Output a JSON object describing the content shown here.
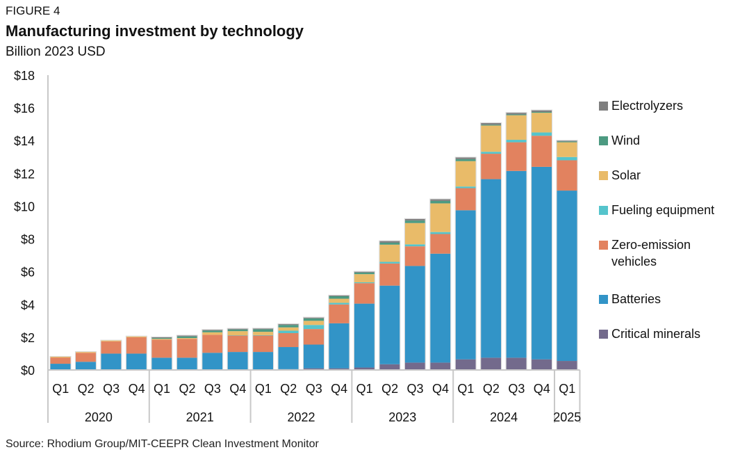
{
  "figure_label": "FIGURE 4",
  "source": "Source: Rhodium Group/MIT-CEEPR Clean Investment Monitor",
  "chart_data": {
    "type": "bar",
    "stacked": true,
    "title": "Manufacturing investment by technology",
    "subtitle": "Billion 2023 USD",
    "xlabel": "",
    "ylabel": "Billion 2023 USD",
    "ylim": [
      0,
      18
    ],
    "yticks": [
      0,
      2,
      4,
      6,
      8,
      10,
      12,
      14,
      16,
      18
    ],
    "ytick_labels": [
      "$0",
      "$2",
      "$4",
      "$6",
      "$8",
      "$10",
      "$12",
      "$14",
      "$16",
      "$18"
    ],
    "grid": false,
    "legend_position": "right",
    "categories": [
      "Q1",
      "Q2",
      "Q3",
      "Q4",
      "Q1",
      "Q2",
      "Q3",
      "Q4",
      "Q1",
      "Q2",
      "Q3",
      "Q4",
      "Q1",
      "Q2",
      "Q3",
      "Q4",
      "Q1",
      "Q2",
      "Q3",
      "Q4",
      "Q1"
    ],
    "year_groups": [
      {
        "label": "2020",
        "count": 4
      },
      {
        "label": "2021",
        "count": 4
      },
      {
        "label": "2022",
        "count": 4
      },
      {
        "label": "2023",
        "count": 4
      },
      {
        "label": "2024",
        "count": 4
      },
      {
        "label": "2025",
        "count": 1
      }
    ],
    "series": [
      {
        "name": "Critical minerals",
        "color": "#736a8c",
        "values": [
          0,
          0,
          0,
          0,
          0,
          0,
          0,
          0,
          0,
          0.05,
          0.1,
          0.1,
          0.15,
          0.35,
          0.45,
          0.45,
          0.65,
          0.75,
          0.75,
          0.65,
          0.55
        ]
      },
      {
        "name": "Batteries",
        "color": "#3294c7",
        "values": [
          0.38,
          0.5,
          1.0,
          1.0,
          0.75,
          0.75,
          1.05,
          1.1,
          1.1,
          1.35,
          1.45,
          2.75,
          3.9,
          4.8,
          5.9,
          6.65,
          9.1,
          10.9,
          11.4,
          11.75,
          10.4
        ]
      },
      {
        "name": "Zero-emission vehicles",
        "color": "#e2825f",
        "values": [
          0.38,
          0.55,
          0.75,
          1.0,
          1.1,
          1.15,
          1.1,
          1.0,
          1.0,
          0.85,
          0.95,
          1.15,
          1.25,
          1.35,
          1.2,
          1.2,
          1.35,
          1.55,
          1.75,
          1.9,
          1.85
        ]
      },
      {
        "name": "Fueling equipment",
        "color": "#55c4cc",
        "values": [
          0,
          0,
          0,
          0,
          0,
          0,
          0,
          0.02,
          0.03,
          0.15,
          0.25,
          0.1,
          0.05,
          0.1,
          0.12,
          0.12,
          0.1,
          0.12,
          0.15,
          0.2,
          0.2
        ]
      },
      {
        "name": "Solar",
        "color": "#e9bb69",
        "values": [
          0.05,
          0.05,
          0.05,
          0.05,
          0.05,
          0.05,
          0.15,
          0.25,
          0.2,
          0.2,
          0.25,
          0.25,
          0.5,
          1.05,
          1.3,
          1.75,
          1.55,
          1.6,
          1.5,
          1.2,
          0.9
        ]
      },
      {
        "name": "Wind",
        "color": "#4c9a81",
        "values": [
          0,
          0,
          0,
          0,
          0.05,
          0.1,
          0.1,
          0.1,
          0.15,
          0.15,
          0.15,
          0.15,
          0.1,
          0.12,
          0.15,
          0.15,
          0.12,
          0.05,
          0.05,
          0.05,
          0.05
        ]
      },
      {
        "name": "Electrolyzers",
        "color": "#7f7f7f",
        "values": [
          0,
          0,
          0,
          0,
          0.05,
          0.05,
          0.05,
          0.05,
          0.05,
          0.05,
          0.05,
          0.05,
          0.05,
          0.1,
          0.1,
          0.1,
          0.1,
          0.1,
          0.1,
          0.1,
          0.05
        ]
      }
    ]
  }
}
